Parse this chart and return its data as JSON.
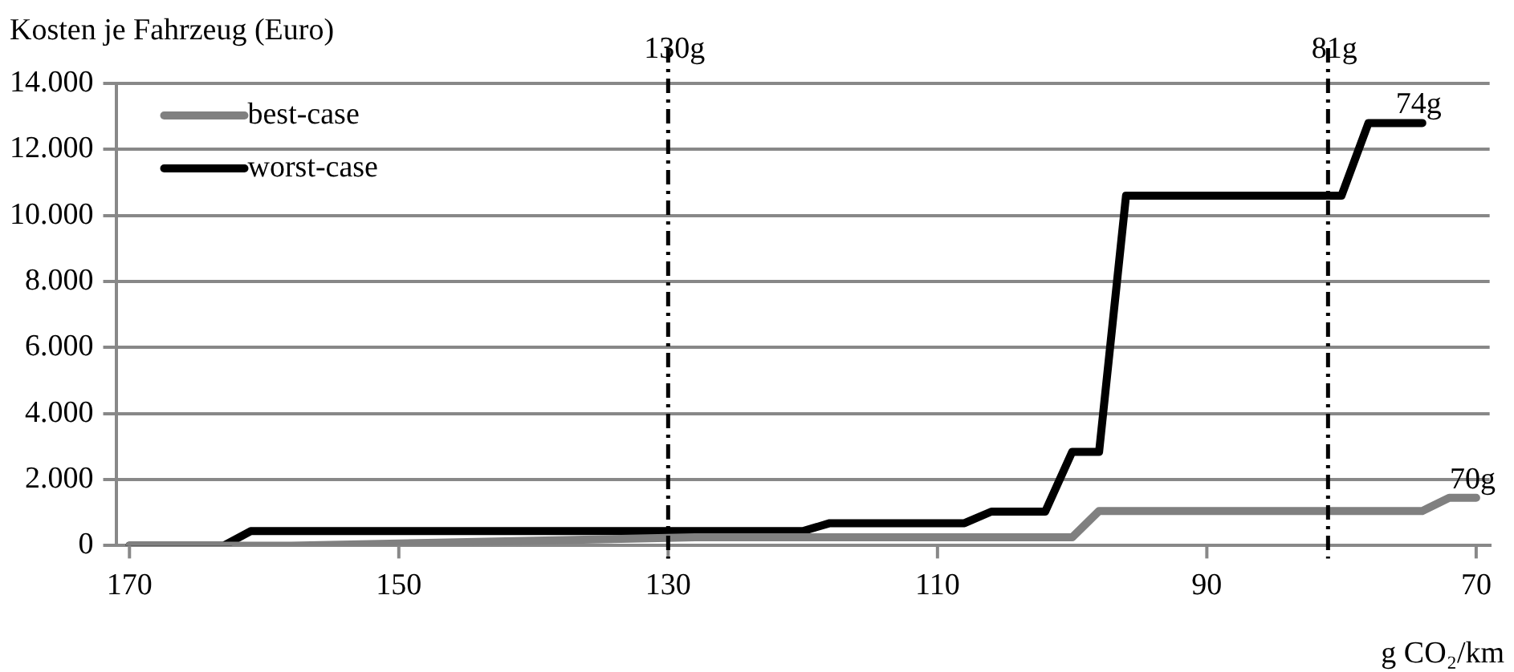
{
  "chart_data": {
    "type": "line",
    "ylabel": "Kosten je Fahrzeug (Euro)",
    "xlabel": "g CO₂/km",
    "xlim": [
      171,
      69
    ],
    "xticks": [
      170,
      150,
      130,
      110,
      90,
      70
    ],
    "ylim": [
      0,
      14000
    ],
    "yticks": [
      {
        "value": 0,
        "label": "0"
      },
      {
        "value": 2000,
        "label": "2.000"
      },
      {
        "value": 4000,
        "label": "4.000"
      },
      {
        "value": 6000,
        "label": "6.000"
      },
      {
        "value": 8000,
        "label": "8.000"
      },
      {
        "value": 10000,
        "label": "10.000"
      },
      {
        "value": 12000,
        "label": "12.000"
      },
      {
        "value": 14000,
        "label": "14.000"
      }
    ],
    "grid": "y",
    "legend": "top left",
    "marker": "none",
    "line_style": "solid",
    "series": [
      {
        "name": "best-case",
        "color": "#808080",
        "x": [
          170,
          158,
          128,
          100,
          98,
          74,
          72,
          70
        ],
        "values": [
          0,
          0,
          250,
          250,
          1050,
          1050,
          1450,
          1450
        ]
      },
      {
        "name": "worst-case",
        "color": "#000000",
        "x": [
          170,
          163,
          161,
          120,
          118,
          108,
          106,
          102,
          100,
          98,
          96,
          80,
          78,
          74
        ],
        "values": [
          0,
          0,
          440,
          440,
          680,
          680,
          1030,
          1030,
          2840,
          2840,
          10600,
          10600,
          12800,
          12800
        ]
      }
    ],
    "ref_lines": [
      {
        "axis": "x",
        "value": 130,
        "label": "130g",
        "color": "#000000",
        "line_style": "dashed"
      },
      {
        "axis": "x",
        "value": 81,
        "label": "81g",
        "color": "#000000",
        "line_style": "dashed"
      }
    ],
    "annotations": [
      {
        "text": "74g",
        "x": 74,
        "y": 12800
      },
      {
        "text": "70g",
        "x": 70,
        "y": 1450
      }
    ]
  }
}
